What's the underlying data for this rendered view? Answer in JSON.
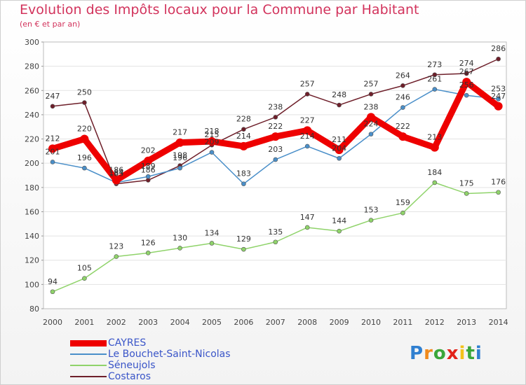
{
  "title": "Evolution des Impôts locaux pour la Commune par Habitant",
  "subtitle": "(en € et par an)",
  "logo": "Proxiti",
  "chart_data": {
    "type": "line",
    "title": "Evolution des Impôts locaux pour la Commune par Habitant",
    "subtitle": "(en € et par an)",
    "xlabel": "",
    "ylabel": "",
    "categories": [
      "2000",
      "2001",
      "2002",
      "2003",
      "2004",
      "2005",
      "2006",
      "2007",
      "2008",
      "2009",
      "2010",
      "2011",
      "2012",
      "2013",
      "2014"
    ],
    "ylim": [
      80,
      300
    ],
    "yticks": [
      80,
      100,
      120,
      140,
      160,
      180,
      200,
      220,
      240,
      260,
      280,
      300
    ],
    "grid": true,
    "legend_position": "bottom-left",
    "series": [
      {
        "name": "Costaros",
        "color": "#6e1f2a",
        "values": [
          247,
          250,
          183,
          186,
          198,
          215,
          228,
          238,
          257,
          248,
          257,
          264,
          273,
          274,
          286
        ]
      },
      {
        "name": "Le Bouchet-Saint-Nicolas",
        "color": "#4a8fc9",
        "values": [
          201,
          196,
          184,
          189,
          196,
          209,
          183,
          203,
          214,
          204,
          224,
          246,
          261,
          256,
          253
        ]
      },
      {
        "name": "Séneujols",
        "color": "#8fd36a",
        "values": [
          94,
          105,
          123,
          126,
          130,
          134,
          129,
          135,
          147,
          144,
          153,
          159,
          184,
          175,
          176
        ]
      },
      {
        "name": "CAYRES",
        "color": "#ee0000",
        "values": [
          212,
          220,
          186,
          202,
          217,
          218,
          214,
          222,
          227,
          211,
          238,
          222,
          213,
          267,
          247
        ]
      }
    ],
    "legend_order": [
      "CAYRES",
      "Le Bouchet-Saint-Nicolas",
      "Séneujols",
      "Costaros"
    ]
  }
}
